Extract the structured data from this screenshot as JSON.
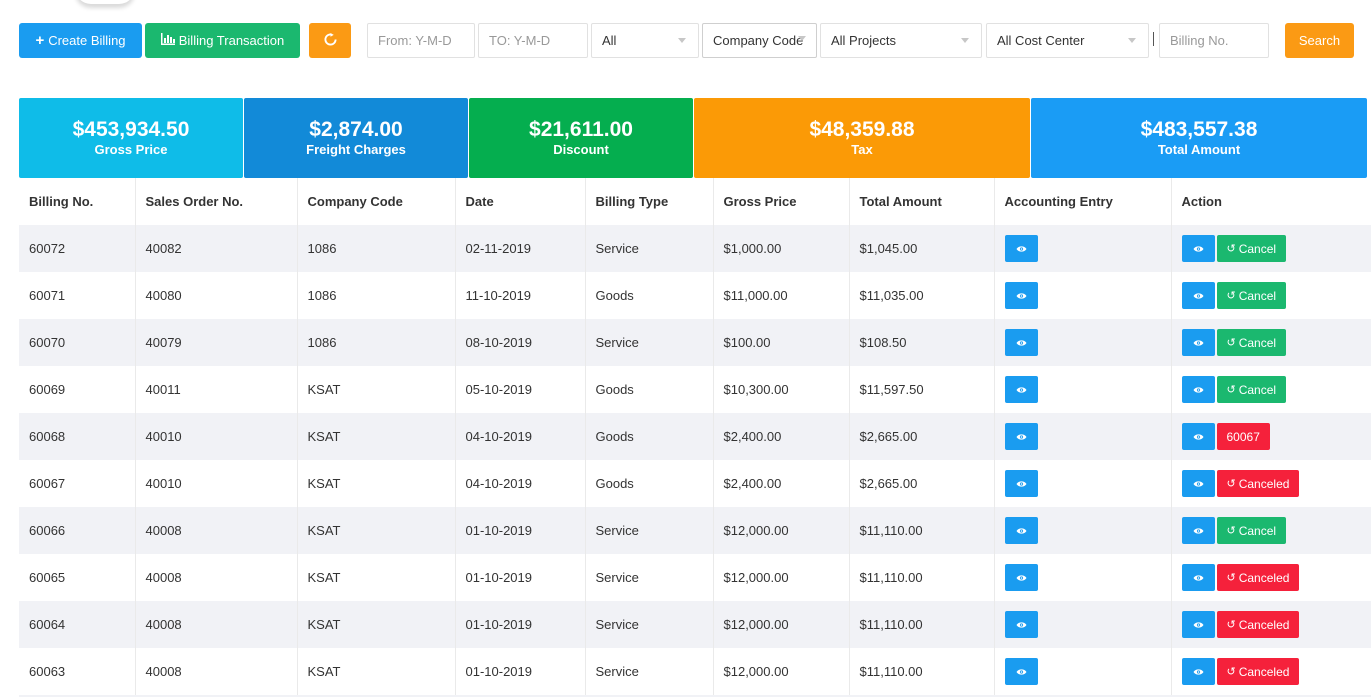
{
  "toolbar": {
    "create_label": "Create Billing",
    "transaction_label": "Billing Transaction",
    "refresh_icon": "refresh-icon",
    "from_placeholder": "From: Y-M-D",
    "to_placeholder": "TO: Y-M-D",
    "status_value": "All",
    "company_value": "Company Code",
    "projects_value": "All Projects",
    "cost_center_value": "All Cost Center",
    "billing_no_placeholder": "Billing No.",
    "search_label": "Search"
  },
  "summary": [
    {
      "amount": "$453,934.50",
      "label": "Gross Price",
      "color": "#0fbce8"
    },
    {
      "amount": "$2,874.00",
      "label": "Freight Charges",
      "color": "#128ad8"
    },
    {
      "amount": "$21,611.00",
      "label": "Discount",
      "color": "#05ae4f"
    },
    {
      "amount": "$48,359.88",
      "label": "Tax",
      "color": "#fb9a06"
    },
    {
      "amount": "$483,557.38",
      "label": "Total Amount",
      "color": "#1a9cf5"
    }
  ],
  "table": {
    "headers": [
      "Billing No.",
      "Sales Order No.",
      "Company Code",
      "Date",
      "Billing Type",
      "Gross Price",
      "Total Amount",
      "Accounting Entry",
      "Action"
    ],
    "rows": [
      {
        "billing_no": "60072",
        "so_no": "40082",
        "company": "1086",
        "date": "02-11-2019",
        "type": "Service",
        "gross": "$1,000.00",
        "total": "$1,045.00",
        "action_kind": "cancel",
        "action_label": "Cancel"
      },
      {
        "billing_no": "60071",
        "so_no": "40080",
        "company": "1086",
        "date": "11-10-2019",
        "type": "Goods",
        "gross": "$11,000.00",
        "total": "$11,035.00",
        "action_kind": "cancel",
        "action_label": "Cancel"
      },
      {
        "billing_no": "60070",
        "so_no": "40079",
        "company": "1086",
        "date": "08-10-2019",
        "type": "Service",
        "gross": "$100.00",
        "total": "$108.50",
        "action_kind": "cancel",
        "action_label": "Cancel"
      },
      {
        "billing_no": "60069",
        "so_no": "40011",
        "company": "KSAT",
        "date": "05-10-2019",
        "type": "Goods",
        "gross": "$10,300.00",
        "total": "$11,597.50",
        "action_kind": "cancel",
        "action_label": "Cancel"
      },
      {
        "billing_no": "60068",
        "so_no": "40010",
        "company": "KSAT",
        "date": "04-10-2019",
        "type": "Goods",
        "gross": "$2,400.00",
        "total": "$2,665.00",
        "action_kind": "ref",
        "action_label": "60067"
      },
      {
        "billing_no": "60067",
        "so_no": "40010",
        "company": "KSAT",
        "date": "04-10-2019",
        "type": "Goods",
        "gross": "$2,400.00",
        "total": "$2,665.00",
        "action_kind": "canceled",
        "action_label": "Canceled"
      },
      {
        "billing_no": "60066",
        "so_no": "40008",
        "company": "KSAT",
        "date": "01-10-2019",
        "type": "Service",
        "gross": "$12,000.00",
        "total": "$11,110.00",
        "action_kind": "cancel",
        "action_label": "Cancel"
      },
      {
        "billing_no": "60065",
        "so_no": "40008",
        "company": "KSAT",
        "date": "01-10-2019",
        "type": "Service",
        "gross": "$12,000.00",
        "total": "$11,110.00",
        "action_kind": "canceled",
        "action_label": "Canceled"
      },
      {
        "billing_no": "60064",
        "so_no": "40008",
        "company": "KSAT",
        "date": "01-10-2019",
        "type": "Service",
        "gross": "$12,000.00",
        "total": "$11,110.00",
        "action_kind": "canceled",
        "action_label": "Canceled"
      },
      {
        "billing_no": "60063",
        "so_no": "40008",
        "company": "KSAT",
        "date": "01-10-2019",
        "type": "Service",
        "gross": "$12,000.00",
        "total": "$11,110.00",
        "action_kind": "canceled",
        "action_label": "Canceled"
      }
    ]
  }
}
